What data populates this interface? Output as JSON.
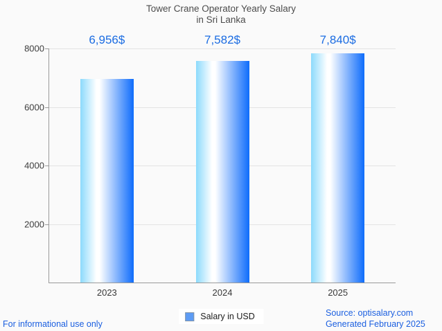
{
  "header": {
    "title_line1": "Tower Crane Operator Yearly Salary",
    "title_line2": "in Sri Lanka"
  },
  "chart_data": {
    "type": "bar",
    "title": "Tower Crane Operator Yearly Salary in Sri Lanka",
    "categories": [
      "2023",
      "2024",
      "2025"
    ],
    "series": [
      {
        "name": "Salary in USD",
        "values": [
          6956,
          7582,
          7840
        ]
      }
    ],
    "value_labels": [
      "6,956$",
      "7,582$",
      "7,840$"
    ],
    "xlabel": "",
    "ylabel": "",
    "ylim": [
      0,
      8000
    ],
    "yticks": [
      2000,
      4000,
      6000,
      8000
    ],
    "grid": true,
    "legend_position": "bottom-center"
  },
  "legend": {
    "label": "Salary in USD"
  },
  "footer": {
    "left_note": "For informational use only",
    "source": "Source: optisalary.com",
    "generated": "Generated February 2025"
  },
  "colors": {
    "background": "#fafafa",
    "accent_blue": "#1b6ce2",
    "footer_blue": "#1b5fe0",
    "bar_gradient_left": "#8cdafc",
    "bar_gradient_mid": "#ffffff",
    "bar_gradient_right": "#0e6cfb",
    "legend_swatch_fill": "#5d9cf5",
    "legend_swatch_border": "#8294a6",
    "gridline": "#e3e3e3",
    "axis_line": "#9a9a9a",
    "title_text": "#4c4c4c",
    "tick_text": "#3d3d3d"
  }
}
